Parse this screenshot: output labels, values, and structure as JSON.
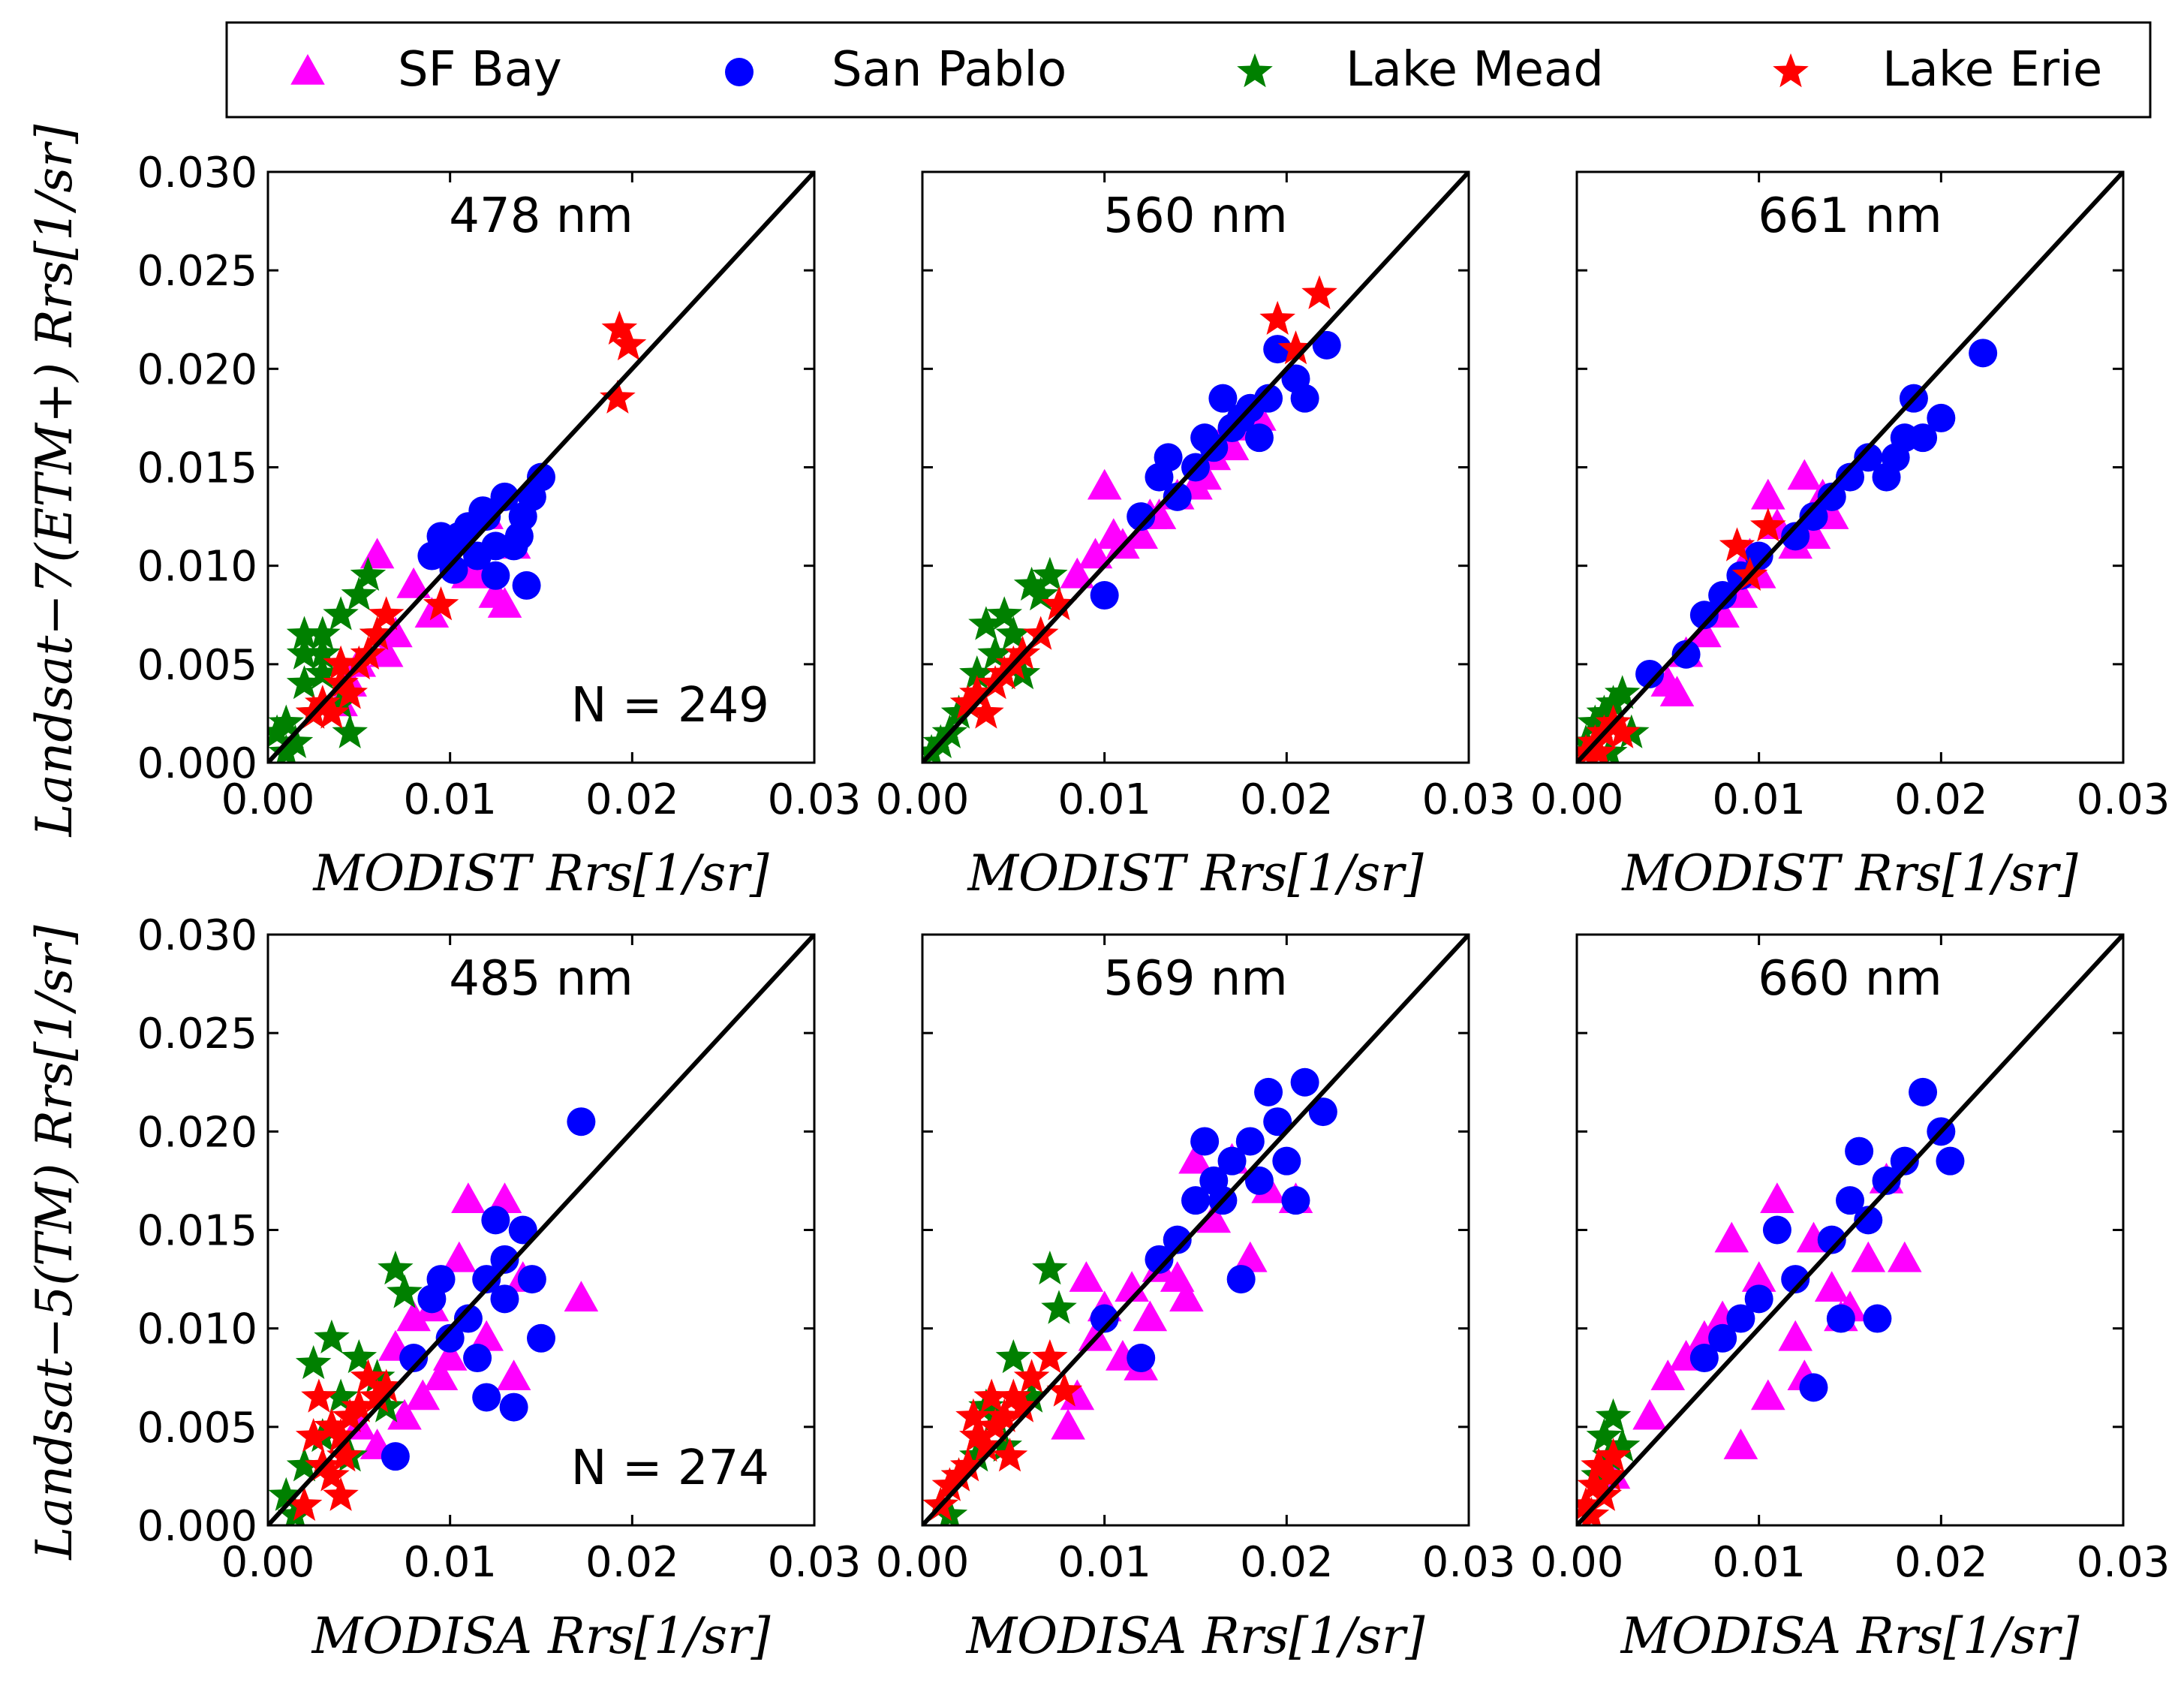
{
  "legend": [
    {
      "label": "SF Bay",
      "color": "#ff00ff",
      "marker": "triangle"
    },
    {
      "label": "San Pablo",
      "color": "#0000ff",
      "marker": "circle"
    },
    {
      "label": "Lake Mead",
      "color": "#008000",
      "marker": "star"
    },
    {
      "label": "Lake Erie",
      "color": "#ff0000",
      "marker": "star"
    }
  ],
  "row_labels": {
    "top_y": "Landsat−7(ETM+) Rrs[1/sr]",
    "bottom_y": "Landsat−5(TM) Rrs[1/sr]"
  },
  "chart_data": [
    {
      "type": "scatter",
      "title": "478 nm",
      "annotation": "N = 249",
      "xlabel": "MODIST Rrs[1/sr]",
      "ylabel": "Landsat−7(ETM+) Rrs[1/sr]",
      "xlim": [
        0,
        0.03
      ],
      "ylim": [
        0,
        0.03
      ],
      "xticks": [
        "0.00",
        "0.01",
        "0.02",
        "0.03"
      ],
      "yticks": [
        "0.000",
        "0.005",
        "0.010",
        "0.015",
        "0.020",
        "0.025",
        "0.030"
      ],
      "series": [
        {
          "name": "SF Bay",
          "x": [
            0.006,
            0.008,
            0.01,
            0.011,
            0.012,
            0.013,
            0.004,
            0.007,
            0.009,
            0.0125,
            0.0115,
            0.005,
            0.0045,
            0.0065,
            0.0135
          ],
          "y": [
            0.0105,
            0.009,
            0.0105,
            0.0095,
            0.0125,
            0.008,
            0.003,
            0.0065,
            0.0075,
            0.0085,
            0.0095,
            0.005,
            0.004,
            0.0055,
            0.011
          ]
        },
        {
          "name": "San Pablo",
          "x": [
            0.009,
            0.01,
            0.011,
            0.012,
            0.013,
            0.014,
            0.015,
            0.0145,
            0.0135,
            0.0125,
            0.0105,
            0.0115,
            0.0095,
            0.0125,
            0.0138,
            0.0142,
            0.0118,
            0.0102
          ],
          "y": [
            0.0105,
            0.011,
            0.012,
            0.0125,
            0.0135,
            0.0125,
            0.0145,
            0.0135,
            0.011,
            0.0095,
            0.0115,
            0.0105,
            0.0115,
            0.011,
            0.0115,
            0.009,
            0.0128,
            0.0098
          ]
        },
        {
          "name": "Lake Mead",
          "x": [
            0.001,
            0.002,
            0.003,
            0.002,
            0.004,
            0.005,
            0.003,
            0.0015,
            0.0025,
            0.004,
            0.0055,
            0.002,
            0.001,
            0.0005,
            0.003,
            0.0045,
            0.006
          ],
          "y": [
            0.002,
            0.004,
            0.0065,
            0.0055,
            0.0075,
            0.0085,
            0.0045,
            0.001,
            0.0025,
            0.003,
            0.0095,
            0.0065,
            0.0005,
            0.0015,
            0.0055,
            0.0015,
            0.0065
          ]
        },
        {
          "name": "Lake Erie",
          "x": [
            0.003,
            0.004,
            0.005,
            0.0035,
            0.0045,
            0.006,
            0.0025,
            0.0055,
            0.0095,
            0.0193,
            0.0198,
            0.0192,
            0.004,
            0.0065
          ],
          "y": [
            0.003,
            0.004,
            0.005,
            0.0025,
            0.0035,
            0.0065,
            0.0025,
            0.0055,
            0.008,
            0.022,
            0.0212,
            0.0185,
            0.005,
            0.0075
          ]
        }
      ]
    },
    {
      "type": "scatter",
      "title": "560 nm",
      "annotation": "",
      "xlabel": "MODIST Rrs[1/sr]",
      "ylabel": "",
      "xlim": [
        0,
        0.03
      ],
      "ylim": [
        0,
        0.03
      ],
      "xticks": [
        "0.00",
        "0.01",
        "0.02",
        "0.03"
      ],
      "yticks": [],
      "series": [
        {
          "name": "SF Bay",
          "x": [
            0.01,
            0.011,
            0.012,
            0.013,
            0.014,
            0.015,
            0.016,
            0.017,
            0.018,
            0.0095,
            0.0085,
            0.0105,
            0.0125,
            0.0155,
            0.0165,
            0.0185
          ],
          "y": [
            0.014,
            0.011,
            0.0115,
            0.0125,
            0.0135,
            0.014,
            0.0155,
            0.016,
            0.017,
            0.0105,
            0.0095,
            0.0115,
            0.0125,
            0.0145,
            0.0165,
            0.0175
          ]
        },
        {
          "name": "San Pablo",
          "x": [
            0.01,
            0.012,
            0.013,
            0.014,
            0.015,
            0.016,
            0.017,
            0.018,
            0.019,
            0.0195,
            0.021,
            0.0222,
            0.0205,
            0.0175,
            0.0185,
            0.0135,
            0.0155,
            0.0165
          ],
          "y": [
            0.0085,
            0.0125,
            0.0145,
            0.0135,
            0.015,
            0.016,
            0.017,
            0.018,
            0.0185,
            0.021,
            0.0185,
            0.0212,
            0.0195,
            0.0175,
            0.0165,
            0.0155,
            0.0165,
            0.0185
          ]
        },
        {
          "name": "Lake Mead",
          "x": [
            0.001,
            0.002,
            0.003,
            0.0035,
            0.0045,
            0.005,
            0.006,
            0.007,
            0.0025,
            0.0015,
            0.004,
            0.0055,
            0.0065,
            0.0005
          ],
          "y": [
            0.001,
            0.0025,
            0.0045,
            0.007,
            0.0075,
            0.0065,
            0.009,
            0.0095,
            0.003,
            0.0015,
            0.0055,
            0.0045,
            0.0085,
            0.0005
          ]
        },
        {
          "name": "Lake Erie",
          "x": [
            0.003,
            0.004,
            0.005,
            0.0035,
            0.0045,
            0.0055,
            0.0065,
            0.0195,
            0.0205,
            0.0218,
            0.0025,
            0.0075
          ],
          "y": [
            0.0035,
            0.004,
            0.005,
            0.0025,
            0.0045,
            0.0055,
            0.0065,
            0.0225,
            0.021,
            0.0238,
            0.003,
            0.008
          ]
        }
      ]
    },
    {
      "type": "scatter",
      "title": "661 nm",
      "annotation": "",
      "xlabel": "MODIST Rrs[1/sr]",
      "ylabel": "",
      "xlim": [
        0,
        0.03
      ],
      "ylim": [
        0,
        0.03
      ],
      "xticks": [
        "0.00",
        "0.01",
        "0.02",
        "0.03"
      ],
      "yticks": [],
      "series": [
        {
          "name": "SF Bay",
          "x": [
            0.005,
            0.006,
            0.007,
            0.008,
            0.009,
            0.01,
            0.011,
            0.012,
            0.013,
            0.014,
            0.0105,
            0.0135,
            0.0055,
            0.0095,
            0.0125
          ],
          "y": [
            0.004,
            0.0055,
            0.0065,
            0.0075,
            0.0085,
            0.0095,
            0.012,
            0.011,
            0.0115,
            0.0125,
            0.0135,
            0.0135,
            0.0035,
            0.0105,
            0.0145
          ]
        },
        {
          "name": "San Pablo",
          "x": [
            0.004,
            0.006,
            0.007,
            0.008,
            0.009,
            0.01,
            0.012,
            0.013,
            0.014,
            0.015,
            0.016,
            0.017,
            0.018,
            0.019,
            0.02,
            0.0223,
            0.0185,
            0.0175
          ],
          "y": [
            0.0045,
            0.0055,
            0.0075,
            0.0085,
            0.0095,
            0.0105,
            0.0115,
            0.0125,
            0.0135,
            0.0145,
            0.0155,
            0.0145,
            0.0165,
            0.0165,
            0.0175,
            0.0208,
            0.0185,
            0.0155
          ]
        },
        {
          "name": "Lake Mead",
          "x": [
            0.001,
            0.0015,
            0.002,
            0.0025,
            0.003,
            0.0005,
            0.0018
          ],
          "y": [
            0.002,
            0.0025,
            0.003,
            0.0035,
            0.0015,
            0.001,
            0.0005
          ]
        },
        {
          "name": "Lake Erie",
          "x": [
            0.0005,
            0.001,
            0.0015,
            0.002,
            0.0025,
            0.0088,
            0.0095,
            0.0105,
            0.0012
          ],
          "y": [
            0.0005,
            0.001,
            0.0015,
            0.002,
            0.0015,
            0.011,
            0.0095,
            0.012,
            0.0005
          ]
        }
      ]
    },
    {
      "type": "scatter",
      "title": "485 nm",
      "annotation": "N = 274",
      "xlabel": "MODISA Rrs[1/sr]",
      "ylabel": "Landsat−5(TM) Rrs[1/sr]",
      "xlim": [
        0,
        0.03
      ],
      "ylim": [
        0,
        0.03
      ],
      "xticks": [
        "0.00",
        "0.01",
        "0.02",
        "0.03"
      ],
      "yticks": [
        "0.000",
        "0.005",
        "0.010",
        "0.015",
        "0.020",
        "0.025",
        "0.030"
      ],
      "series": [
        {
          "name": "SF Bay",
          "x": [
            0.005,
            0.007,
            0.008,
            0.009,
            0.01,
            0.011,
            0.012,
            0.013,
            0.014,
            0.0172,
            0.0135,
            0.006,
            0.0085,
            0.0105,
            0.0095,
            0.0075
          ],
          "y": [
            0.005,
            0.009,
            0.0105,
            0.011,
            0.0085,
            0.0165,
            0.0095,
            0.0165,
            0.0125,
            0.0115,
            0.0075,
            0.004,
            0.0065,
            0.0135,
            0.0075,
            0.0055
          ]
        },
        {
          "name": "San Pablo",
          "x": [
            0.007,
            0.008,
            0.009,
            0.01,
            0.011,
            0.012,
            0.013,
            0.014,
            0.015,
            0.0172,
            0.0125,
            0.0135,
            0.0115,
            0.0145,
            0.012,
            0.013,
            0.0095
          ],
          "y": [
            0.0035,
            0.0085,
            0.0115,
            0.0095,
            0.0105,
            0.0125,
            0.0135,
            0.015,
            0.0095,
            0.0205,
            0.0155,
            0.006,
            0.0085,
            0.0125,
            0.0065,
            0.0115,
            0.0125
          ]
        },
        {
          "name": "Lake Mead",
          "x": [
            0.001,
            0.002,
            0.003,
            0.004,
            0.005,
            0.006,
            0.007,
            0.0075,
            0.0035,
            0.0025,
            0.0045,
            0.0065,
            0.0015
          ],
          "y": [
            0.0015,
            0.003,
            0.0045,
            0.0065,
            0.0085,
            0.0075,
            0.013,
            0.0118,
            0.0095,
            0.0082,
            0.0035,
            0.006,
            0.0005
          ]
        },
        {
          "name": "Lake Erie",
          "x": [
            0.002,
            0.003,
            0.004,
            0.005,
            0.0035,
            0.0045,
            0.0055,
            0.006,
            0.0025,
            0.0035,
            0.004,
            0.0065,
            0.0028,
            0.0042
          ],
          "y": [
            0.001,
            0.003,
            0.0045,
            0.006,
            0.0025,
            0.0055,
            0.0075,
            0.0065,
            0.0045,
            0.005,
            0.0015,
            0.007,
            0.0065,
            0.0035
          ]
        }
      ]
    },
    {
      "type": "scatter",
      "title": "569 nm",
      "annotation": "",
      "xlabel": "MODISA Rrs[1/sr]",
      "ylabel": "",
      "xlim": [
        0,
        0.03
      ],
      "ylim": [
        0,
        0.03
      ],
      "xticks": [
        "0.00",
        "0.01",
        "0.02",
        "0.03"
      ],
      "yticks": [],
      "series": [
        {
          "name": "SF Bay",
          "x": [
            0.008,
            0.009,
            0.01,
            0.011,
            0.012,
            0.013,
            0.014,
            0.015,
            0.016,
            0.017,
            0.018,
            0.019,
            0.0205,
            0.0085,
            0.0095,
            0.0115,
            0.0125,
            0.0145
          ],
          "y": [
            0.005,
            0.0125,
            0.011,
            0.0085,
            0.008,
            0.013,
            0.0125,
            0.0185,
            0.0155,
            0.0185,
            0.0135,
            0.017,
            0.0165,
            0.0065,
            0.0095,
            0.012,
            0.0105,
            0.0115
          ]
        },
        {
          "name": "San Pablo",
          "x": [
            0.01,
            0.012,
            0.013,
            0.014,
            0.015,
            0.016,
            0.017,
            0.018,
            0.019,
            0.02,
            0.021,
            0.022,
            0.0175,
            0.0165,
            0.0185,
            0.0155,
            0.0195,
            0.0205
          ],
          "y": [
            0.0105,
            0.0085,
            0.0135,
            0.0145,
            0.0165,
            0.0175,
            0.0185,
            0.0195,
            0.022,
            0.0185,
            0.0225,
            0.021,
            0.0125,
            0.0165,
            0.0175,
            0.0195,
            0.0205,
            0.0165
          ]
        },
        {
          "name": "Lake Mead",
          "x": [
            0.001,
            0.002,
            0.003,
            0.004,
            0.005,
            0.006,
            0.007,
            0.0075,
            0.0035,
            0.0045,
            0.0015
          ],
          "y": [
            0.001,
            0.0025,
            0.0035,
            0.0055,
            0.0085,
            0.0065,
            0.013,
            0.011,
            0.006,
            0.004,
            0.0005
          ]
        },
        {
          "name": "Lake Erie",
          "x": [
            0.001,
            0.0015,
            0.002,
            0.0025,
            0.003,
            0.0035,
            0.004,
            0.0045,
            0.005,
            0.0055,
            0.006,
            0.007,
            0.0078,
            0.0028,
            0.0038,
            0.0048
          ],
          "y": [
            0.001,
            0.002,
            0.0025,
            0.003,
            0.0045,
            0.004,
            0.005,
            0.0055,
            0.0065,
            0.006,
            0.0075,
            0.0085,
            0.0068,
            0.0055,
            0.0065,
            0.0035
          ]
        }
      ]
    },
    {
      "type": "scatter",
      "title": "660 nm",
      "annotation": "",
      "xlabel": "MODISA Rrs[1/sr]",
      "ylabel": "",
      "xlim": [
        0,
        0.03
      ],
      "ylim": [
        0,
        0.03
      ],
      "xticks": [
        "0.00",
        "0.01",
        "0.02",
        "0.03"
      ],
      "yticks": [],
      "series": [
        {
          "name": "SF Bay",
          "x": [
            0.002,
            0.004,
            0.005,
            0.006,
            0.007,
            0.008,
            0.009,
            0.01,
            0.011,
            0.012,
            0.013,
            0.014,
            0.015,
            0.016,
            0.017,
            0.018,
            0.0105,
            0.0085,
            0.0125,
            0.0145
          ],
          "y": [
            0.0025,
            0.0055,
            0.0075,
            0.0085,
            0.0095,
            0.0105,
            0.004,
            0.0125,
            0.0165,
            0.0095,
            0.0145,
            0.012,
            0.011,
            0.0135,
            0.0175,
            0.0135,
            0.0065,
            0.0145,
            0.0075,
            0.0105
          ]
        },
        {
          "name": "San Pablo",
          "x": [
            0.007,
            0.008,
            0.009,
            0.01,
            0.011,
            0.012,
            0.013,
            0.014,
            0.015,
            0.016,
            0.017,
            0.018,
            0.019,
            0.02,
            0.0205,
            0.0145,
            0.0165,
            0.0155
          ],
          "y": [
            0.0085,
            0.0095,
            0.0105,
            0.0115,
            0.015,
            0.0125,
            0.007,
            0.0145,
            0.0165,
            0.0155,
            0.0175,
            0.0185,
            0.022,
            0.02,
            0.0185,
            0.0105,
            0.0105,
            0.019
          ]
        },
        {
          "name": "Lake Mead",
          "x": [
            0.0015,
            0.002,
            0.0025,
            0.0018,
            0.0012
          ],
          "y": [
            0.0045,
            0.0055,
            0.004,
            0.0035,
            0.0025
          ]
        },
        {
          "name": "Lake Erie",
          "x": [
            0.0005,
            0.001,
            0.0015,
            0.002,
            0.0008,
            0.0012,
            0.0018
          ],
          "y": [
            0.001,
            0.002,
            0.0015,
            0.0035,
            0.0005,
            0.003,
            0.0025
          ]
        }
      ]
    }
  ]
}
